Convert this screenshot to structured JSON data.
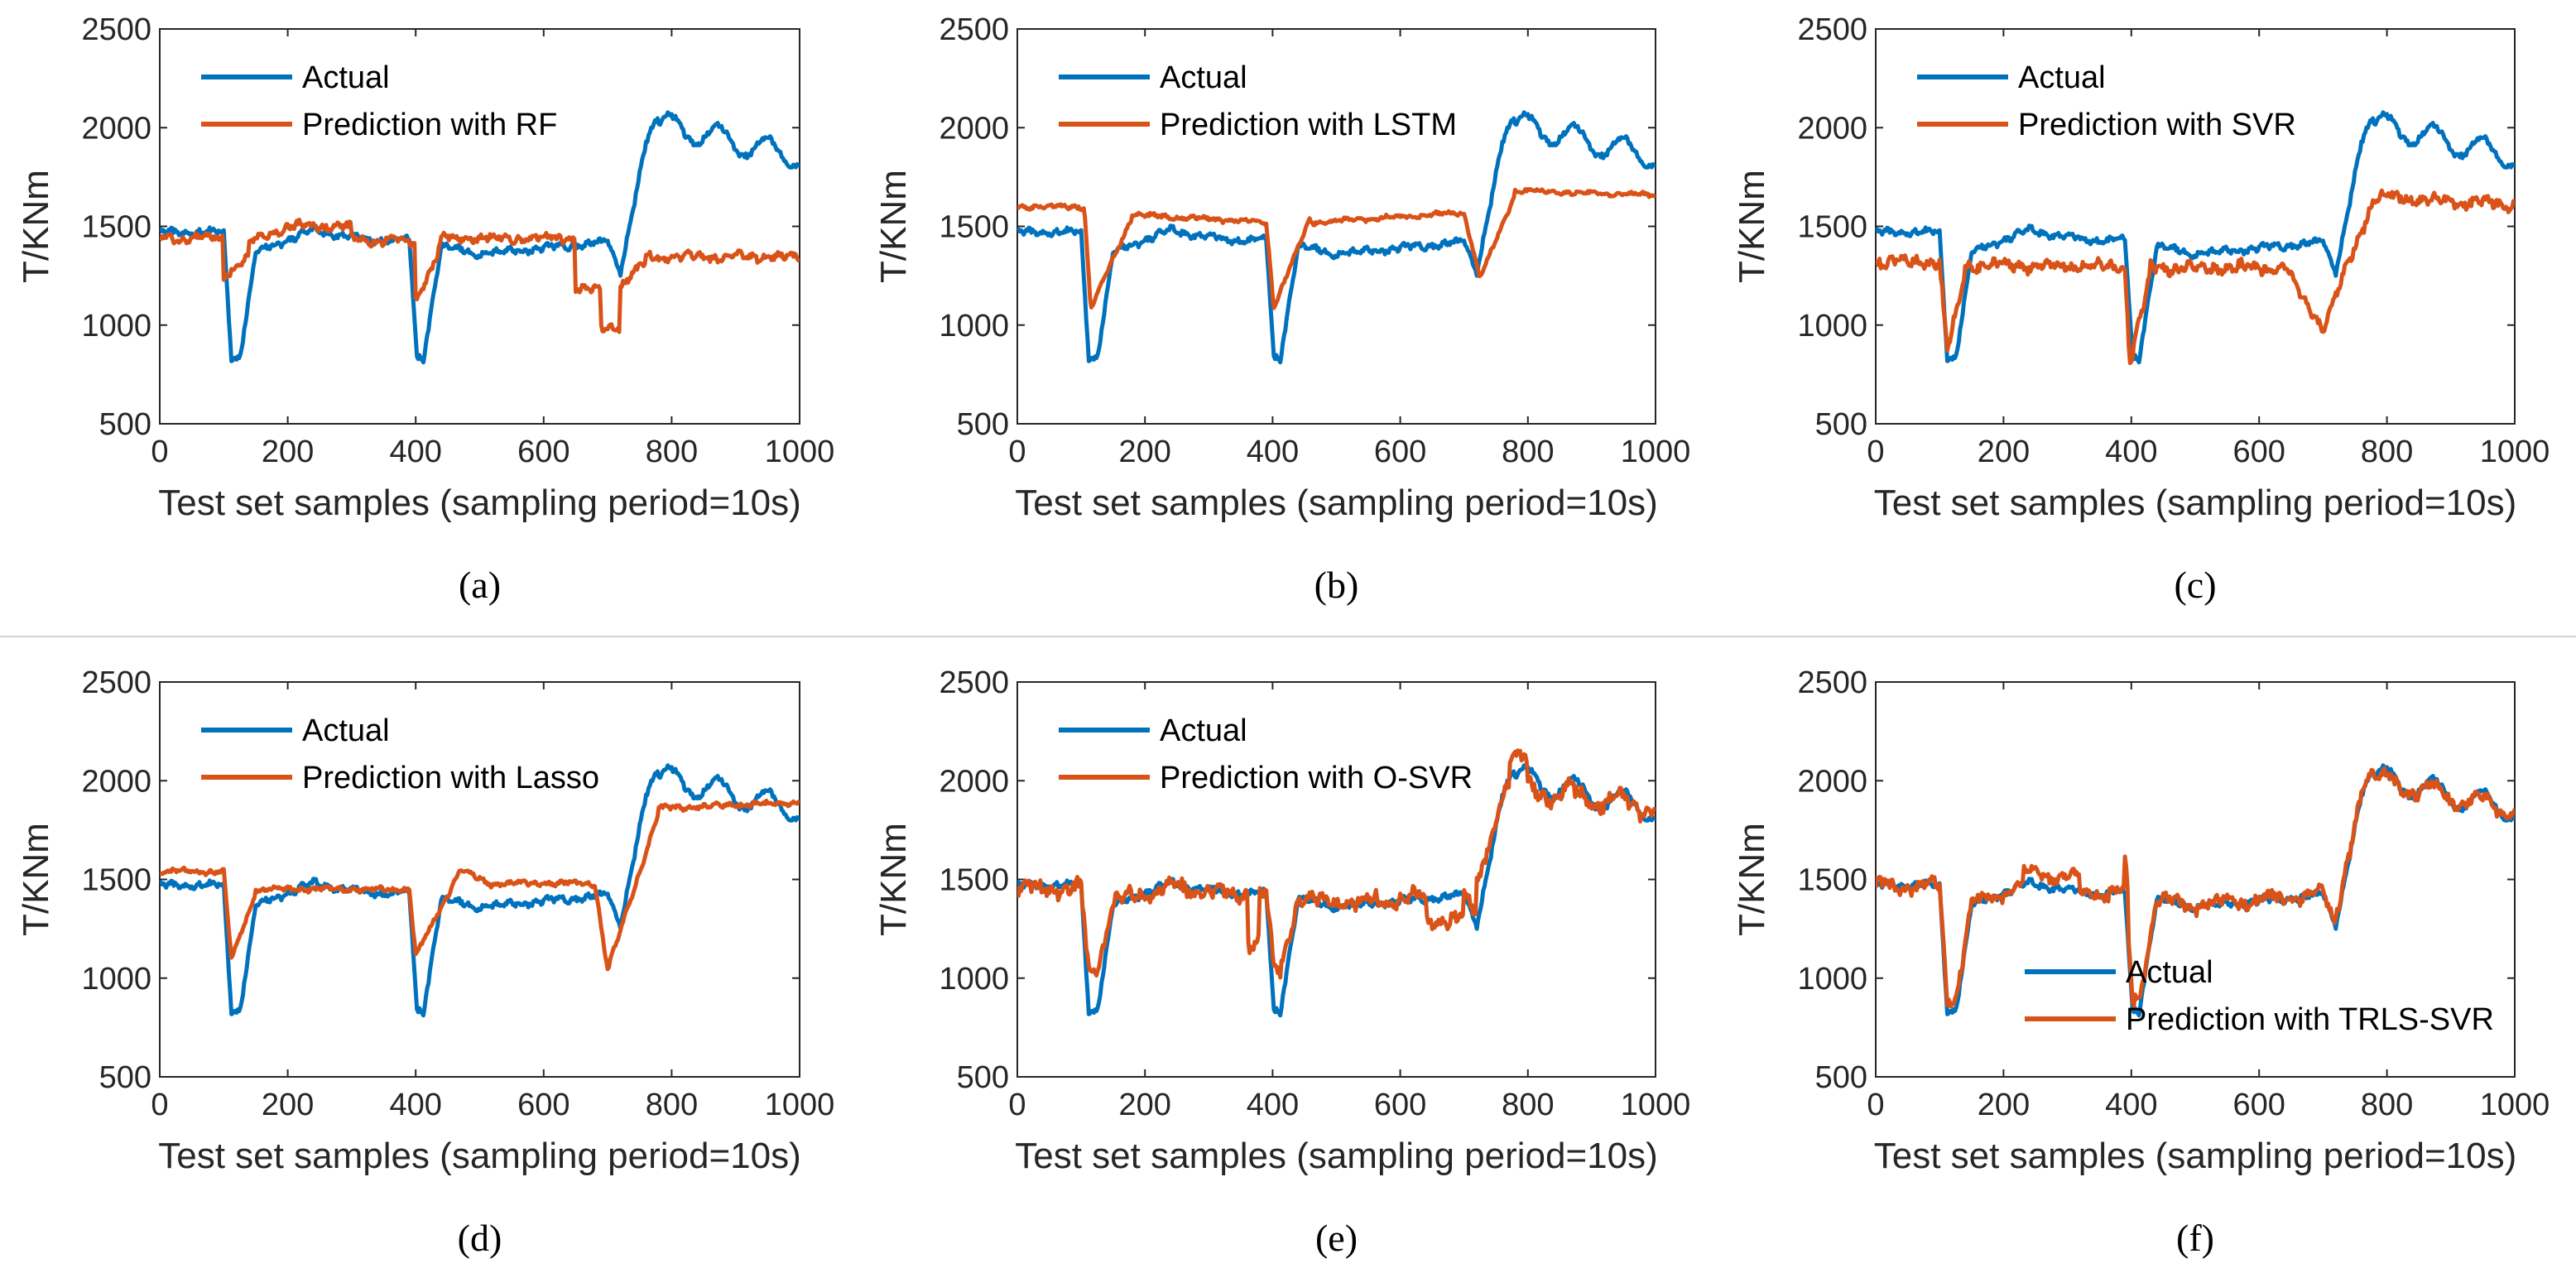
{
  "colors": {
    "actual": "#0072BD",
    "prediction": "#D95319",
    "axis": "#262626",
    "separator": "#d0d0d0"
  },
  "chart_data": [
    {
      "type": "line",
      "caption": "(a)",
      "xlabel": "Test set samples (sampling period=10s)",
      "ylabel": "T/KNm",
      "xlim": [
        0,
        1000
      ],
      "ylim": [
        500,
        2500
      ],
      "xticks": [
        "0",
        "200",
        "400",
        "600",
        "800",
        "1000"
      ],
      "yticks": [
        "500",
        "1000",
        "1500",
        "2000",
        "2500"
      ],
      "legend_position": "top-left",
      "series": [
        {
          "name": "Actual",
          "model": "actual"
        },
        {
          "name": "Prediction with RF",
          "model": "rf"
        }
      ]
    },
    {
      "type": "line",
      "caption": "(b)",
      "xlabel": "Test set samples (sampling period=10s)",
      "ylabel": "T/KNm",
      "xlim": [
        0,
        1000
      ],
      "ylim": [
        500,
        2500
      ],
      "xticks": [
        "0",
        "200",
        "400",
        "600",
        "800",
        "1000"
      ],
      "yticks": [
        "500",
        "1000",
        "1500",
        "2000",
        "2500"
      ],
      "legend_position": "top-left",
      "series": [
        {
          "name": "Actual",
          "model": "actual"
        },
        {
          "name": "Prediction with LSTM",
          "model": "lstm"
        }
      ]
    },
    {
      "type": "line",
      "caption": "(c)",
      "xlabel": "Test set samples (sampling period=10s)",
      "ylabel": "T/KNm",
      "xlim": [
        0,
        1000
      ],
      "ylim": [
        500,
        2500
      ],
      "xticks": [
        "0",
        "200",
        "400",
        "600",
        "800",
        "1000"
      ],
      "yticks": [
        "500",
        "1000",
        "1500",
        "2000",
        "2500"
      ],
      "legend_position": "top-left",
      "series": [
        {
          "name": "Actual",
          "model": "actual"
        },
        {
          "name": "Prediction with SVR",
          "model": "svr"
        }
      ]
    },
    {
      "type": "line",
      "caption": "(d)",
      "xlabel": "Test set samples (sampling period=10s)",
      "ylabel": "T/KNm",
      "xlim": [
        0,
        1000
      ],
      "ylim": [
        500,
        2500
      ],
      "xticks": [
        "0",
        "200",
        "400",
        "600",
        "800",
        "1000"
      ],
      "yticks": [
        "500",
        "1000",
        "1500",
        "2000",
        "2500"
      ],
      "legend_position": "top-left",
      "series": [
        {
          "name": "Actual",
          "model": "actual"
        },
        {
          "name": "Prediction with Lasso",
          "model": "lasso"
        }
      ]
    },
    {
      "type": "line",
      "caption": "(e)",
      "xlabel": "Test set samples (sampling period=10s)",
      "ylabel": "T/KNm",
      "xlim": [
        0,
        1000
      ],
      "ylim": [
        500,
        2500
      ],
      "xticks": [
        "0",
        "200",
        "400",
        "600",
        "800",
        "1000"
      ],
      "yticks": [
        "500",
        "1000",
        "1500",
        "2000",
        "2500"
      ],
      "legend_position": "top-left",
      "series": [
        {
          "name": "Actual",
          "model": "actual"
        },
        {
          "name": "Prediction with O-SVR",
          "model": "osvr"
        }
      ]
    },
    {
      "type": "line",
      "caption": "(f)",
      "xlabel": "Test set samples (sampling period=10s)",
      "ylabel": "T/KNm",
      "xlim": [
        0,
        1000
      ],
      "ylim": [
        500,
        2500
      ],
      "xticks": [
        "0",
        "200",
        "400",
        "600",
        "800",
        "1000"
      ],
      "yticks": [
        "500",
        "1000",
        "1500",
        "2000",
        "2500"
      ],
      "legend_position": "bottom-center",
      "series": [
        {
          "name": "Actual",
          "model": "actual"
        },
        {
          "name": "Prediction with TRLS-SVR",
          "model": "trls"
        }
      ]
    }
  ]
}
